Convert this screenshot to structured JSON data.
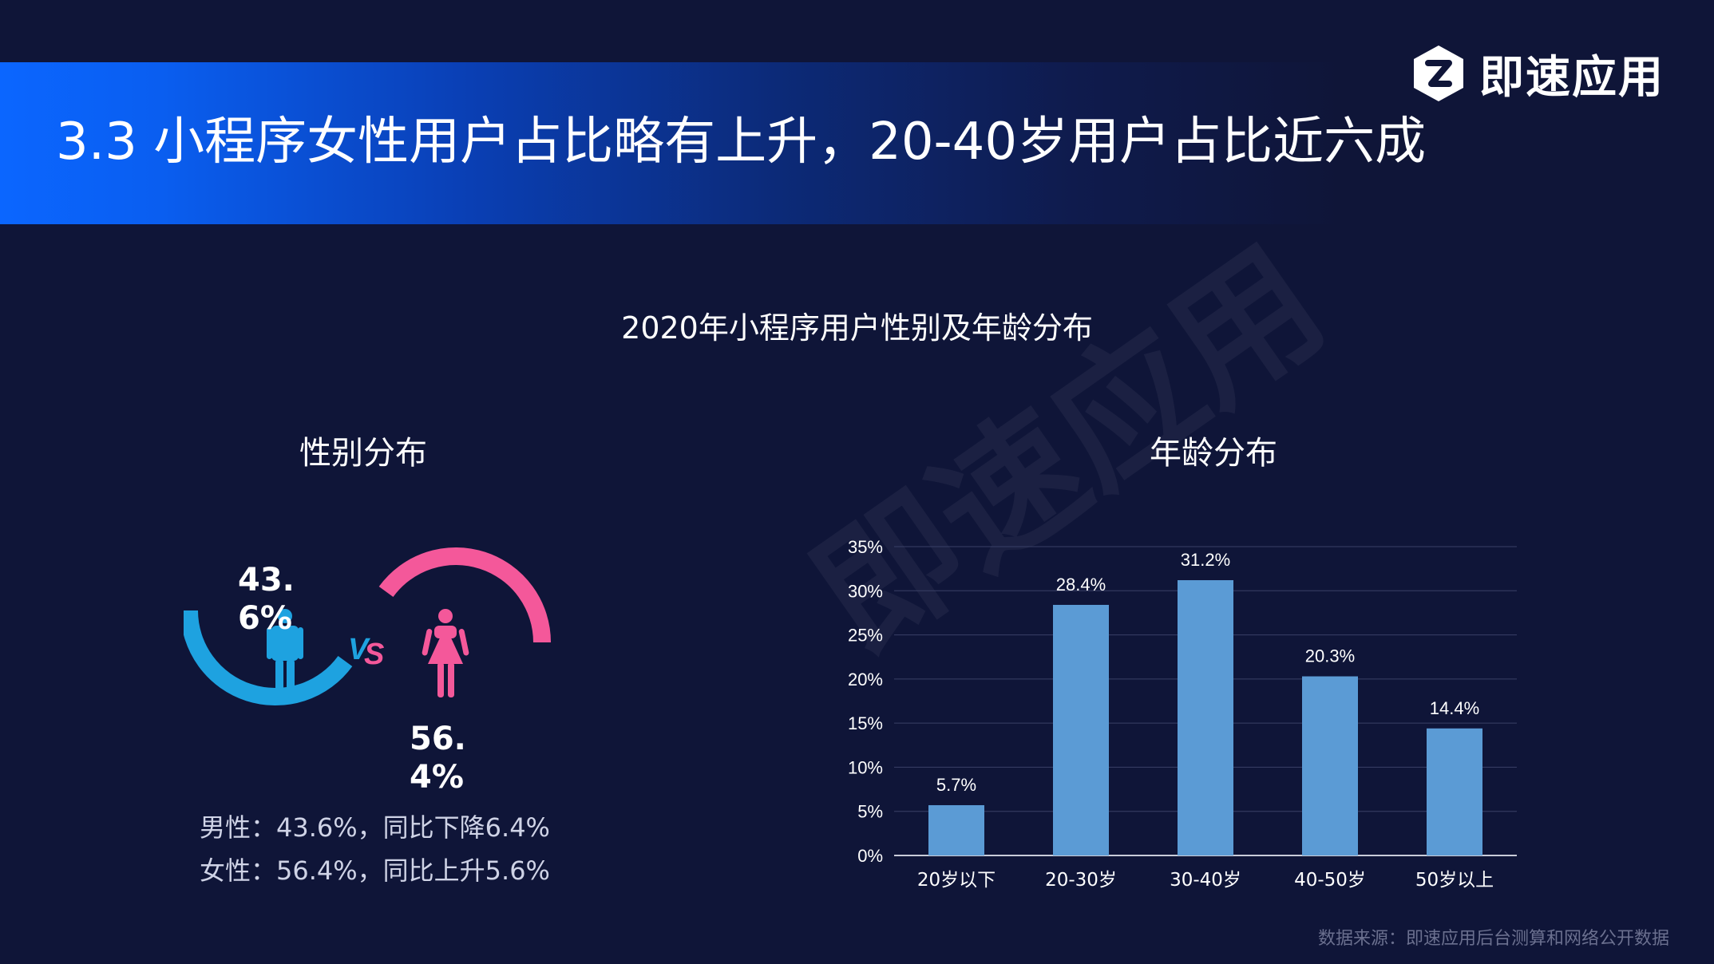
{
  "header": {
    "title": "3.3 小程序女性用户占比略有上升，20-40岁用户占比近六成",
    "brand_name": "即速应用",
    "brand_logo": "logo-icon",
    "watermark": "即速应用"
  },
  "chart_title": "2020年小程序用户性别及年龄分布",
  "gender": {
    "subtitle": "性别分布",
    "male_pct_label": "43.6%",
    "female_pct_label": "56.4%",
    "vs_label": "VS",
    "male_note": "男性：43.6%，同比下降6.4%",
    "female_note": "女性：56.4%，同比上升5.6%",
    "male_icon": "male-person-icon",
    "female_icon": "female-person-icon",
    "colors": {
      "male": "#1ea2e0",
      "female": "#f4589a"
    }
  },
  "age": {
    "subtitle": "年龄分布"
  },
  "chart_data": [
    {
      "type": "pie",
      "categories": [
        "男性",
        "女性"
      ],
      "values": [
        43.6,
        56.4
      ],
      "colors": [
        "#1ea2e0",
        "#f4589a"
      ]
    },
    {
      "type": "bar",
      "categories": [
        "20岁以下",
        "20-30岁",
        "30-40岁",
        "40-50岁",
        "50岁以上"
      ],
      "values": [
        5.7,
        28.4,
        31.2,
        20.3,
        14.4
      ],
      "data_labels": [
        "5.7%",
        "28.4%",
        "31.2%",
        "20.3%",
        "14.4%"
      ],
      "ylim": [
        0,
        35
      ],
      "yticks": [
        "0%",
        "5%",
        "10%",
        "15%",
        "20%",
        "25%",
        "30%",
        "35%"
      ],
      "grid": true,
      "bar_color": "#5b9bd5"
    }
  ],
  "footer": {
    "source": "数据来源：即速应用后台测算和网络公开数据"
  }
}
